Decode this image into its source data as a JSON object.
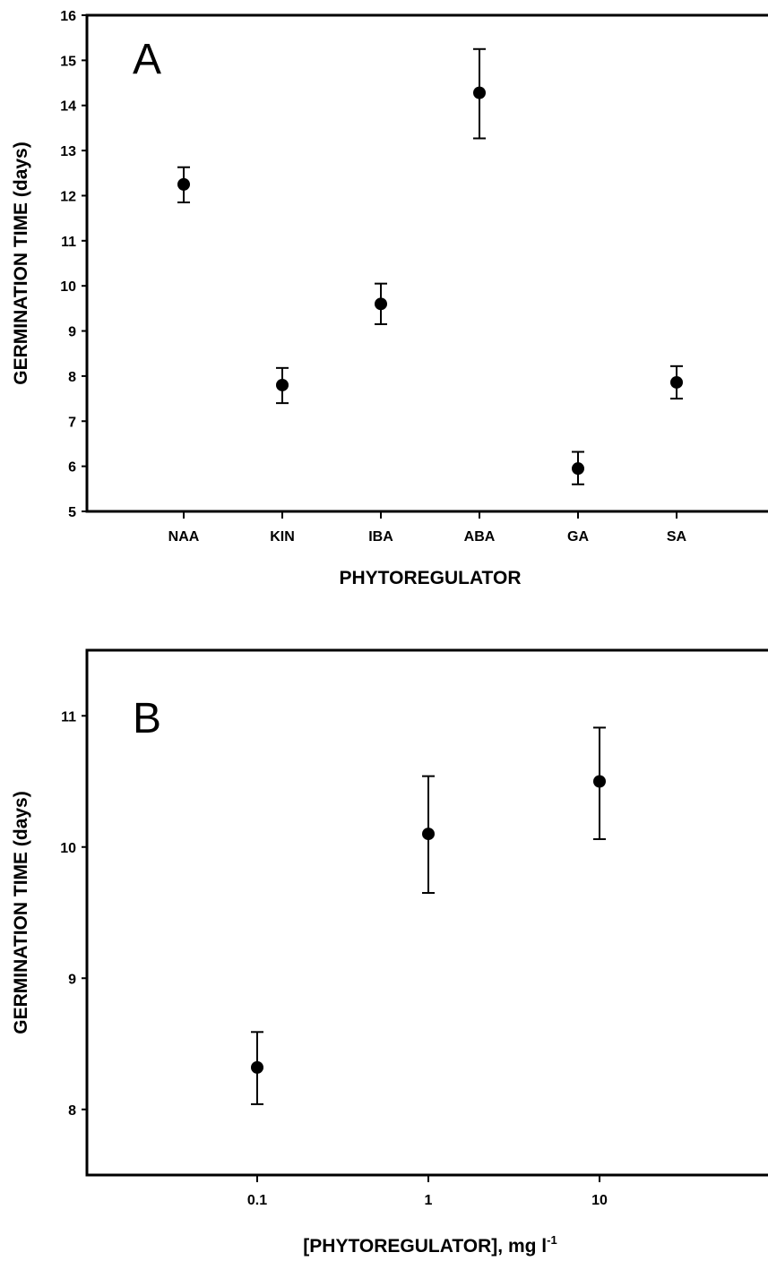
{
  "chart_data": [
    {
      "type": "scatter",
      "panel_label": "A",
      "categories": [
        "NAA",
        "KIN",
        "IBA",
        "ABA",
        "GA",
        "SA"
      ],
      "values": [
        12.25,
        7.8,
        9.6,
        14.28,
        5.95,
        7.86
      ],
      "error_lower": [
        11.85,
        7.4,
        9.15,
        13.27,
        5.6,
        7.5
      ],
      "error_upper": [
        12.63,
        8.18,
        10.05,
        15.25,
        6.32,
        8.22
      ],
      "xlabel": "PHYTOREGULATOR",
      "ylabel": "GERMINATION TIME (days)",
      "ylim": [
        5,
        16
      ],
      "yticks": [
        5,
        6,
        7,
        8,
        9,
        10,
        11,
        12,
        13,
        14,
        15,
        16
      ],
      "grid": false,
      "legend": "none"
    },
    {
      "type": "scatter",
      "panel_label": "B",
      "x": [
        0.1,
        1,
        10
      ],
      "xtick_labels": [
        "0.1",
        "1",
        "10"
      ],
      "x_scale": "log",
      "values": [
        8.32,
        10.1,
        10.5
      ],
      "error_lower": [
        8.04,
        9.65,
        10.06
      ],
      "error_upper": [
        8.59,
        10.54,
        10.91
      ],
      "xlabel": "[PHYTOREGULATOR], mg l",
      "xlabel_superscript": "-1",
      "ylabel": "GERMINATION TIME (days)",
      "ylim": [
        7.5,
        11.5
      ],
      "yticks": [
        8,
        9,
        10,
        11
      ],
      "grid": false,
      "legend": "none"
    }
  ]
}
